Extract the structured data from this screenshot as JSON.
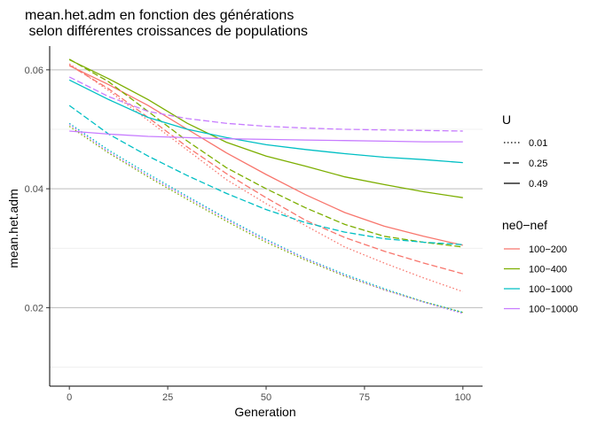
{
  "chart_data": {
    "type": "line",
    "title_lines": [
      "mean.het.adm en fonction des générations",
      " selon différentes croissances de populations"
    ],
    "xlabel": "Generation",
    "ylabel": "mean.het.adm",
    "xlim": [
      -5,
      105
    ],
    "ylim": [
      0.0068,
      0.064
    ],
    "x_ticks": [
      0,
      25,
      50,
      75,
      100
    ],
    "y_major_ticks": [
      0.02,
      0.04,
      0.06
    ],
    "y_minor_ticks": [
      0.01,
      0.03,
      0.05
    ],
    "grid": true,
    "legend_position": "right",
    "legend_U": {
      "title": "U",
      "entries": [
        {
          "label": "0.01",
          "dash": "dotted"
        },
        {
          "label": "0.25",
          "dash": "dashed"
        },
        {
          "label": "0.49",
          "dash": "solid"
        }
      ]
    },
    "legend_color": {
      "title": "ne0−nef",
      "entries": [
        {
          "label": "100−200",
          "color": "#F8766D"
        },
        {
          "label": "100−400",
          "color": "#7CAE00"
        },
        {
          "label": "100−1000",
          "color": "#00BFC4"
        },
        {
          "label": "100−10000",
          "color": "#C77CFF"
        }
      ]
    },
    "series": [
      {
        "group": "100−200",
        "U": "0.49",
        "color": "#F8766D",
        "dash": "solid",
        "x": [
          0,
          10,
          20,
          30,
          40,
          50,
          60,
          70,
          80,
          90,
          100
        ],
        "y": [
          0.0607,
          0.0575,
          0.054,
          0.05,
          0.046,
          0.0424,
          0.039,
          0.036,
          0.0337,
          0.032,
          0.0305
        ]
      },
      {
        "group": "100−200",
        "U": "0.25",
        "color": "#F8766D",
        "dash": "dashed",
        "x": [
          0,
          10,
          20,
          30,
          40,
          50,
          60,
          70,
          80,
          90,
          100
        ],
        "y": [
          0.0608,
          0.0568,
          0.052,
          0.047,
          0.0425,
          0.0385,
          0.0347,
          0.0318,
          0.0295,
          0.0275,
          0.0257
        ]
      },
      {
        "group": "100−200",
        "U": "0.01",
        "color": "#F8766D",
        "dash": "dotted",
        "x": [
          0,
          10,
          20,
          30,
          40,
          50,
          60,
          70,
          80,
          90,
          100
        ],
        "y": [
          0.061,
          0.0565,
          0.0515,
          0.0465,
          0.0415,
          0.0375,
          0.0338,
          0.0302,
          0.0275,
          0.025,
          0.0227
        ]
      },
      {
        "group": "100−400",
        "U": "0.49",
        "color": "#7CAE00",
        "dash": "solid",
        "x": [
          0,
          10,
          20,
          30,
          40,
          50,
          60,
          70,
          80,
          90,
          100
        ],
        "y": [
          0.0617,
          0.0585,
          0.055,
          0.051,
          0.0478,
          0.0455,
          0.0438,
          0.042,
          0.0407,
          0.0395,
          0.0385
        ]
      },
      {
        "group": "100−400",
        "U": "0.25",
        "color": "#7CAE00",
        "dash": "dashed",
        "x": [
          0,
          10,
          20,
          30,
          40,
          50,
          60,
          70,
          80,
          90,
          100
        ],
        "y": [
          0.0618,
          0.058,
          0.053,
          0.048,
          0.0435,
          0.04,
          0.0368,
          0.034,
          0.032,
          0.031,
          0.0302
        ]
      },
      {
        "group": "100−400",
        "U": "0.01",
        "color": "#7CAE00",
        "dash": "dotted",
        "x": [
          0,
          10,
          20,
          30,
          40,
          50,
          60,
          70,
          80,
          90,
          100
        ],
        "y": [
          0.0505,
          0.046,
          0.042,
          0.0382,
          0.0345,
          0.031,
          0.028,
          0.0253,
          0.023,
          0.021,
          0.0192
        ]
      },
      {
        "group": "100−1000",
        "U": "0.49",
        "color": "#00BFC4",
        "dash": "solid",
        "x": [
          0,
          10,
          20,
          30,
          40,
          50,
          60,
          70,
          80,
          90,
          100
        ],
        "y": [
          0.0583,
          0.055,
          0.052,
          0.05,
          0.0486,
          0.0474,
          0.0466,
          0.0459,
          0.0453,
          0.0449,
          0.0444
        ]
      },
      {
        "group": "100−1000",
        "U": "0.25",
        "color": "#00BFC4",
        "dash": "dashed",
        "x": [
          0,
          10,
          20,
          30,
          40,
          50,
          60,
          70,
          80,
          90,
          100
        ],
        "y": [
          0.054,
          0.0492,
          0.0455,
          0.0422,
          0.0392,
          0.0365,
          0.0343,
          0.0327,
          0.0316,
          0.031,
          0.0306
        ]
      },
      {
        "group": "100−1000",
        "U": "0.01",
        "color": "#00BFC4",
        "dash": "dotted",
        "x": [
          0,
          10,
          20,
          30,
          40,
          50,
          60,
          70,
          80,
          90,
          100
        ],
        "y": [
          0.051,
          0.0465,
          0.0425,
          0.0387,
          0.035,
          0.0315,
          0.0283,
          0.0256,
          0.0232,
          0.021,
          0.0192
        ]
      },
      {
        "group": "100−10000",
        "U": "0.49",
        "color": "#C77CFF",
        "dash": "solid",
        "x": [
          0,
          10,
          20,
          30,
          40,
          50,
          60,
          70,
          80,
          90,
          100
        ],
        "y": [
          0.0497,
          0.0492,
          0.0488,
          0.0486,
          0.0484,
          0.0483,
          0.0482,
          0.0481,
          0.048,
          0.0479,
          0.0479
        ]
      },
      {
        "group": "100−10000",
        "U": "0.25",
        "color": "#C77CFF",
        "dash": "dashed",
        "x": [
          0,
          10,
          20,
          30,
          40,
          50,
          60,
          70,
          80,
          90,
          100
        ],
        "y": [
          0.0588,
          0.0555,
          0.053,
          0.0518,
          0.051,
          0.0505,
          0.0502,
          0.05,
          0.0499,
          0.0498,
          0.0497
        ]
      },
      {
        "group": "100−10000",
        "U": "0.01",
        "color": "#C77CFF",
        "dash": "dotted",
        "x": [
          0,
          10,
          20,
          30,
          40,
          50,
          60,
          70,
          80,
          90,
          100
        ],
        "y": [
          0.0508,
          0.0462,
          0.0422,
          0.0385,
          0.0348,
          0.0313,
          0.0282,
          0.0254,
          0.023,
          0.0209,
          0.019
        ]
      }
    ]
  }
}
